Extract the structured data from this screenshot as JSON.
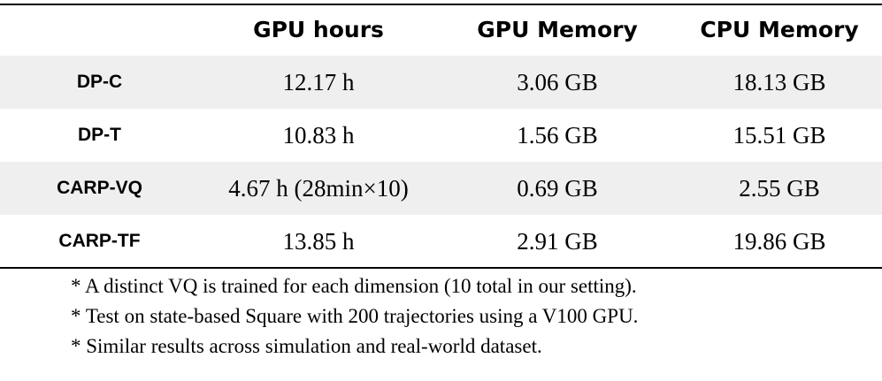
{
  "table": {
    "header": [
      "GPU hours",
      "GPU Memory",
      "CPU Memory"
    ],
    "rows": [
      [
        "DP-C",
        "12.17 h",
        "3.06 GB",
        "18.13 GB"
      ],
      [
        "DP-T",
        "10.83 h",
        "1.56 GB",
        "15.51 GB"
      ],
      [
        "CARP-VQ",
        "4.67 h (28min×10)",
        "0.69 GB",
        "2.55 GB"
      ],
      [
        "CARP-TF",
        "13.85 h",
        "2.91 GB",
        "19.86 GB"
      ]
    ],
    "notes": [
      "* A distinct VQ is trained for each dimension (10 total in our setting).",
      "* Test on state-based Square with 200 trajectories using a V100 GPU.",
      "* Similar results across simulation and real-world dataset."
    ]
  }
}
